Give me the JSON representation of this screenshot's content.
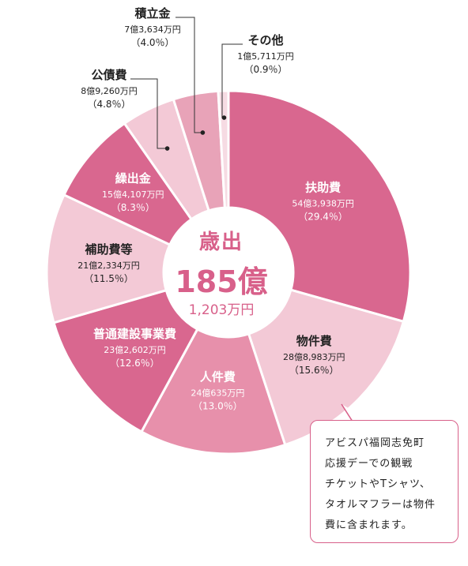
{
  "chart_data": {
    "type": "pie",
    "variant": "donut",
    "center_label": {
      "title": "歳出",
      "amount": "185億",
      "amount_sub": "1,203万円"
    },
    "slices": [
      {
        "name": "扶助費",
        "amount": "54億3,938万円",
        "percent": 29.4,
        "percent_label": "（29.4％）",
        "color": "#d9678f"
      },
      {
        "name": "物件費",
        "amount": "28億8,983万円",
        "percent": 15.6,
        "percent_label": "（15.6％）",
        "color": "#f3c9d6"
      },
      {
        "name": "人件費",
        "amount": "24億635万円",
        "percent": 13.0,
        "percent_label": "（13.0％）",
        "color": "#e790ab"
      },
      {
        "name": "普通建設事業費",
        "amount": "23億2,602万円",
        "percent": 12.6,
        "percent_label": "（12.6％）",
        "color": "#d9678f"
      },
      {
        "name": "補助費等",
        "amount": "21億2,334万円",
        "percent": 11.5,
        "percent_label": "（11.5％）",
        "color": "#f3c9d6"
      },
      {
        "name": "繰出金",
        "amount": "15億4,107万円",
        "percent": 8.3,
        "percent_label": "（8.3％）",
        "color": "#d9678f"
      },
      {
        "name": "公債費",
        "amount": "8億9,260万円",
        "percent": 4.8,
        "percent_label": "（4.8％）",
        "color": "#f3c9d6"
      },
      {
        "name": "積立金",
        "amount": "7億3,634万円",
        "percent": 4.0,
        "percent_label": "（4.0％）",
        "color": "#e8a3b8"
      },
      {
        "name": "その他",
        "amount": "1億5,711万円",
        "percent": 0.9,
        "percent_label": "（0.9％）",
        "color": "#f6dbe3"
      }
    ]
  },
  "note": {
    "lines": [
      "アビスパ福岡志免町",
      "応援デーでの観戦",
      "チケットやTシャツ、",
      "タオルマフラーは物件",
      "費に含まれます。"
    ]
  },
  "colors": {
    "accent": "#d8608a",
    "dark_slice": "#d9678f",
    "light_slice": "#f3c9d6",
    "mid_slice": "#e790ab"
  }
}
